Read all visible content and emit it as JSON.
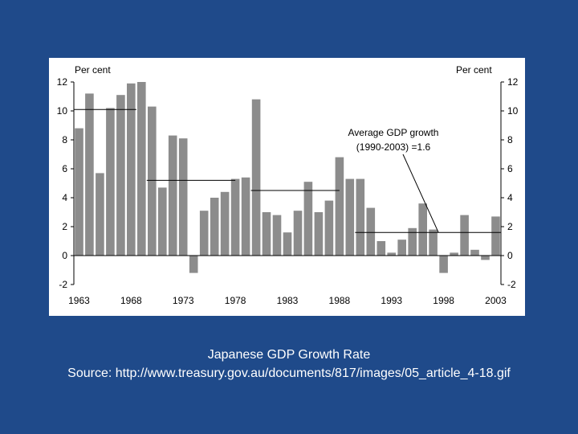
{
  "slide": {
    "caption_title": "Japanese GDP Growth Rate",
    "caption_source": "Source: http://www.treasury.gov.au/documents/817/images/05_article_4-18.gif"
  },
  "colors": {
    "background": "#1f4a8a",
    "bar": "#8c8c8c",
    "caption_text": "#ffffff"
  },
  "chart_data": {
    "type": "bar",
    "left_unit": "Per cent",
    "right_unit": "Per cent",
    "ylim": [
      -2,
      12
    ],
    "yticks": [
      -2,
      0,
      2,
      4,
      6,
      8,
      10,
      12
    ],
    "x_tick_labels": [
      "1963",
      "1968",
      "1973",
      "1978",
      "1983",
      "1988",
      "1993",
      "1998",
      "2003"
    ],
    "x": [
      1963,
      1964,
      1965,
      1966,
      1967,
      1968,
      1969,
      1970,
      1971,
      1972,
      1973,
      1974,
      1975,
      1976,
      1977,
      1978,
      1979,
      1980,
      1981,
      1982,
      1983,
      1984,
      1985,
      1986,
      1987,
      1988,
      1989,
      1990,
      1991,
      1992,
      1993,
      1994,
      1995,
      1996,
      1997,
      1998,
      1999,
      2000,
      2001,
      2002,
      2003
    ],
    "values": [
      8.8,
      11.2,
      5.7,
      10.2,
      11.1,
      11.9,
      12.0,
      10.3,
      4.7,
      8.3,
      8.1,
      -1.2,
      3.1,
      4.0,
      4.4,
      5.3,
      5.4,
      10.8,
      3.0,
      2.8,
      1.6,
      3.1,
      5.1,
      3.0,
      3.8,
      6.8,
      5.3,
      5.3,
      3.3,
      1.0,
      0.2,
      1.1,
      1.9,
      3.6,
      1.8,
      -1.2,
      0.2,
      2.8,
      0.4,
      -0.3,
      2.7
    ],
    "average_lines": [
      {
        "from": 1963,
        "to": 1968,
        "value": 10.1
      },
      {
        "from": 1970,
        "to": 1977.5,
        "value": 5.2
      },
      {
        "from": 1980,
        "to": 1987.5,
        "value": 4.5
      },
      {
        "from": 1990,
        "to": 2003,
        "value": 1.6
      }
    ],
    "annotation": {
      "line1": "Average GDP growth",
      "line2": "(1990-2003) =1.6",
      "points_to_year": 1997.5,
      "points_to_value": 1.6
    },
    "grid": false
  }
}
